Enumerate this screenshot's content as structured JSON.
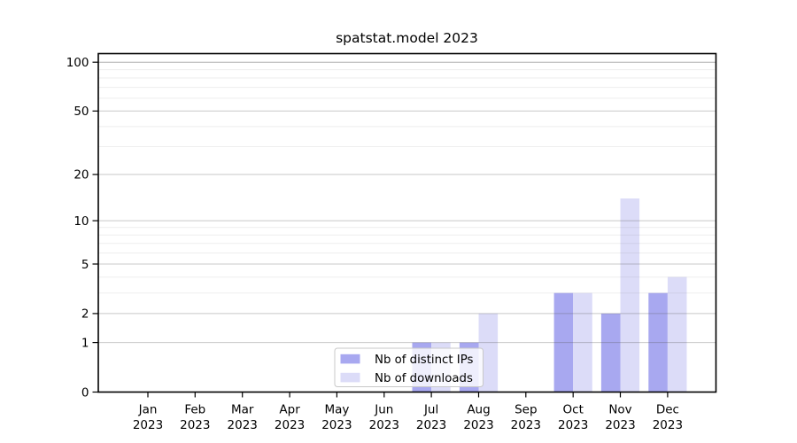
{
  "chart_data": {
    "type": "bar",
    "title": "spatstat.model 2023",
    "x_categories": [
      "Jan 2023",
      "Feb 2023",
      "Mar 2023",
      "Apr 2023",
      "May 2023",
      "Jun 2023",
      "Jul 2023",
      "Aug 2023",
      "Sep 2023",
      "Oct 2023",
      "Nov 2023",
      "Dec 2023"
    ],
    "series": [
      {
        "name": "Nb of distinct IPs",
        "color": "#a8a8f0",
        "values": [
          0,
          0,
          0,
          0,
          0,
          0,
          1,
          1,
          0,
          3,
          2,
          3
        ]
      },
      {
        "name": "Nb of downloads",
        "color": "#dcdcf8",
        "values": [
          0,
          0,
          0,
          0,
          0,
          0,
          1,
          2,
          0,
          3,
          14,
          4
        ]
      }
    ],
    "y_axis": {
      "scale": "log1p",
      "min": 0,
      "max": 100,
      "major_ticks": [
        0,
        1,
        2,
        5,
        10,
        20,
        50,
        100
      ],
      "minor_gridlines": [
        3,
        4,
        6,
        7,
        8,
        9,
        30,
        40,
        60,
        70,
        80,
        90
      ]
    },
    "legend": {
      "position": "bottom-center-inside",
      "items": [
        "Nb of distinct IPs",
        "Nb of downloads"
      ]
    },
    "grid": true,
    "styles": {
      "bar_color_distinct_ips": "#a8a8f0",
      "bar_color_downloads": "#dcdcf8",
      "axis_color": "#000000",
      "major_grid_color": "#c5c5c5",
      "minor_grid_color": "#ececec",
      "top_grid_color": "#acacac",
      "legend_border_color": "#c8c8c8",
      "text_color": "#000000"
    }
  }
}
